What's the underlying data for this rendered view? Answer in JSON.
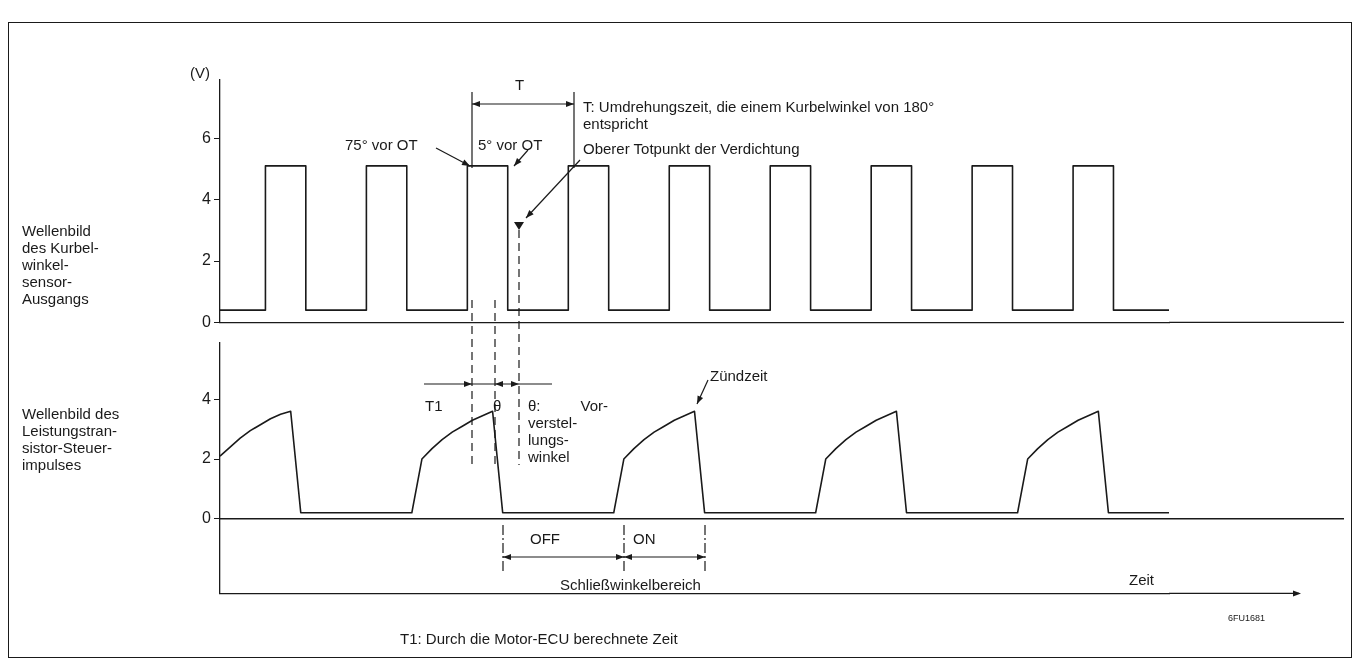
{
  "chart_data": [
    {
      "type": "step",
      "ylabel": "Wellenbild des Kurbel-winkel-sensor-Ausgangs",
      "categories": [
        null,
        null,
        null,
        null,
        null,
        null,
        null,
        null,
        null,
        null,
        null,
        null,
        null,
        null,
        null,
        null,
        null,
        null,
        null,
        null,
        null,
        null,
        null,
        null,
        null,
        null,
        null,
        null,
        null,
        null,
        null,
        null,
        null,
        null,
        null,
        null,
        null,
        null,
        null,
        null,
        null,
        null,
        null,
        null,
        null,
        null,
        null,
        null,
        null,
        null,
        null,
        null,
        null,
        null,
        null,
        null,
        null,
        null,
        null,
        null,
        null,
        null,
        null,
        null,
        null,
        null,
        null,
        null,
        null,
        null,
        null,
        null,
        null,
        null,
        null,
        null,
        null,
        null,
        null,
        null,
        null,
        null,
        null,
        null,
        null,
        null,
        null,
        null,
        null,
        null,
        null,
        null,
        null,
        null,
        null
      ],
      "values": [
        0.4,
        0.4,
        0.4,
        0.4,
        0.4,
        5.1,
        5.1,
        5.1,
        5.1,
        0.4,
        0.4,
        0.4,
        0.4,
        0.4,
        0.4,
        5.1,
        5.1,
        5.1,
        5.1,
        0.4,
        0.4,
        0.4,
        0.4,
        0.4,
        0.4,
        5.1,
        5.1,
        5.1,
        5.1,
        0.4,
        0.4,
        0.4,
        0.4,
        0.4,
        0.4,
        5.1,
        5.1,
        5.1,
        5.1,
        0.4,
        0.4,
        0.4,
        0.4,
        0.4,
        0.4,
        5.1,
        5.1,
        5.1,
        5.1,
        0.4,
        0.4,
        0.4,
        0.4,
        0.4,
        0.4,
        5.1,
        5.1,
        5.1,
        5.1,
        0.4,
        0.4,
        0.4,
        0.4,
        0.4,
        0.4,
        5.1,
        5.1,
        5.1,
        5.1,
        0.4,
        0.4,
        0.4,
        0.4,
        0.4,
        0.4,
        5.1,
        5.1,
        5.1,
        5.1,
        0.4,
        0.4,
        0.4,
        0.4,
        0.4,
        0.4,
        5.1,
        5.1,
        5.1,
        5.1,
        0.4,
        0.4,
        0.4,
        0.4,
        0.4,
        0.4
      ],
      "color": "#1a1a1a",
      "marker": "none",
      "grid": false,
      "tick_labels": "y",
      "ylim": [
        0,
        7.9
      ],
      "yticks": [
        0,
        2,
        4,
        6
      ],
      "annotations": [
        "(V)",
        "T",
        "T: Umdrehungszeit, die einem Kurbelwinkel von 180° entspricht",
        "75° vor OT",
        "5° vor OT",
        "Oberer Totpunkt der Verdichtung"
      ]
    },
    {
      "type": "line",
      "ylabel": "Wellenbild des Leistungstran-sistor-Steuer-impulses",
      "xlabel": "Zeit",
      "categories": [
        null,
        null,
        null,
        null,
        null,
        null,
        null,
        null,
        null,
        null,
        null,
        null,
        null,
        null,
        null,
        null,
        null,
        null,
        null,
        null,
        null,
        null,
        null,
        null,
        null,
        null,
        null,
        null,
        null,
        null,
        null,
        null,
        null,
        null,
        null,
        null,
        null,
        null,
        null,
        null,
        null,
        null,
        null,
        null,
        null,
        null,
        null,
        null,
        null,
        null,
        null,
        null,
        null,
        null,
        null,
        null,
        null,
        null,
        null,
        null,
        null,
        null,
        null,
        null,
        null,
        null,
        null,
        null,
        null,
        null,
        null,
        null,
        null,
        null,
        null,
        null,
        null,
        null,
        null,
        null,
        null,
        null,
        null,
        null,
        null,
        null,
        null,
        null,
        null,
        null,
        null,
        null,
        null,
        null,
        null
      ],
      "values": [
        2.1,
        2.4,
        2.7,
        2.95,
        3.15,
        3.35,
        3.5,
        3.6,
        0.2,
        0.2,
        0.2,
        0.2,
        0.2,
        0.2,
        0.2,
        0.2,
        0.2,
        0.2,
        0.2,
        0.2,
        2,
        2.35,
        2.65,
        2.9,
        3.1,
        3.3,
        3.45,
        3.6,
        0.2,
        0.2,
        0.2,
        0.2,
        0.2,
        0.2,
        0.2,
        0.2,
        0.2,
        0.2,
        0.2,
        0.2,
        2,
        2.35,
        2.65,
        2.9,
        3.1,
        3.3,
        3.45,
        3.6,
        0.2,
        0.2,
        0.2,
        0.2,
        0.2,
        0.2,
        0.2,
        0.2,
        0.2,
        0.2,
        0.2,
        0.2,
        2,
        2.35,
        2.65,
        2.9,
        3.1,
        3.3,
        3.45,
        3.6,
        0.2,
        0.2,
        0.2,
        0.2,
        0.2,
        0.2,
        0.2,
        0.2,
        0.2,
        0.2,
        0.2,
        0.2,
        2,
        2.35,
        2.65,
        2.9,
        3.1,
        3.3,
        3.45,
        3.6,
        0.2,
        0.2,
        0.2,
        0.2,
        0.2,
        0.2,
        0.2
      ],
      "color": "#1a1a1a",
      "marker": "none",
      "grid": false,
      "tick_labels": "y",
      "ylim": [
        -2.5,
        5.9
      ],
      "yticks": [
        0,
        2,
        4
      ],
      "ref_lines": [
        {
          "axis": "y",
          "value": 0
        }
      ],
      "annotations": [
        "T1",
        "θ",
        "θ: Vor-verstel-lungs-winkel",
        "Zündzeit",
        "OFF",
        "ON",
        "Schließwinkelbereich",
        "6FU1681",
        "T1: Durch die Motor-ECU berechnete Zeit"
      ]
    }
  ]
}
